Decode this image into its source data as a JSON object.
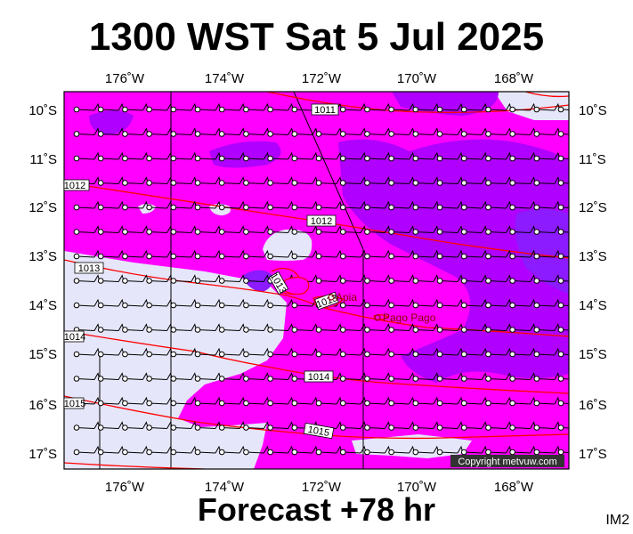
{
  "title": "1300 WST Sat 5 Jul 2025",
  "subtitle": "Forecast +78 hr",
  "corner_code": "IM2",
  "copyright": "Copyright metvuw.com",
  "axes": {
    "lon_labels": [
      "176˚W",
      "174˚W",
      "172˚W",
      "170˚W",
      "168˚W"
    ],
    "lat_labels": [
      "10˚S",
      "11˚S",
      "12˚S",
      "13˚S",
      "14˚S",
      "15˚S",
      "16˚S",
      "17˚S"
    ]
  },
  "isobars": [
    {
      "label": "1011"
    },
    {
      "label": "1012"
    },
    {
      "label": "1012"
    },
    {
      "label": "1013"
    },
    {
      "label": "1013"
    },
    {
      "label": "1013"
    },
    {
      "label": "1014"
    },
    {
      "label": "1014"
    },
    {
      "label": "1015"
    },
    {
      "label": "1015"
    }
  ],
  "places": [
    "Apia",
    "Pago Pago"
  ],
  "colors": {
    "background_light": "#e6e6fa",
    "magenta": "#ff00ff",
    "violet": "#b000ff",
    "deep_violet": "#8c1bff",
    "isobar": "#ff0000",
    "coast": "#ff0000"
  }
}
